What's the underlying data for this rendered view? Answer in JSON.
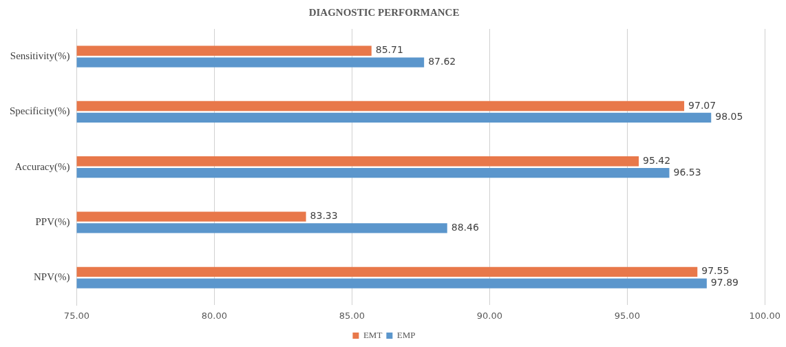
{
  "chart_data": {
    "type": "bar",
    "orientation": "horizontal",
    "title": "DIAGNOSTIC PERFORMANCE",
    "categories": [
      "Sensitivity(%)",
      "Specificity(%)",
      "Accuracy(%)",
      "PPV(%)",
      "NPV(%)"
    ],
    "series": [
      {
        "name": "EMT",
        "color": "#e8784a",
        "values": [
          85.71,
          97.07,
          95.42,
          83.33,
          97.55
        ]
      },
      {
        "name": "EMP",
        "color": "#5b96cc",
        "values": [
          87.62,
          98.05,
          96.53,
          88.46,
          97.89
        ]
      }
    ],
    "xlim": [
      75,
      100
    ],
    "xticks": [
      {
        "value": 75,
        "label": "75.00"
      },
      {
        "value": 80,
        "label": "80.00"
      },
      {
        "value": 85,
        "label": "85.00"
      },
      {
        "value": 90,
        "label": "90.00"
      },
      {
        "value": 95,
        "label": "95.00"
      },
      {
        "value": 100,
        "label": "100.00"
      }
    ],
    "grid": "x",
    "legend": "bottom",
    "data_labels": true
  }
}
